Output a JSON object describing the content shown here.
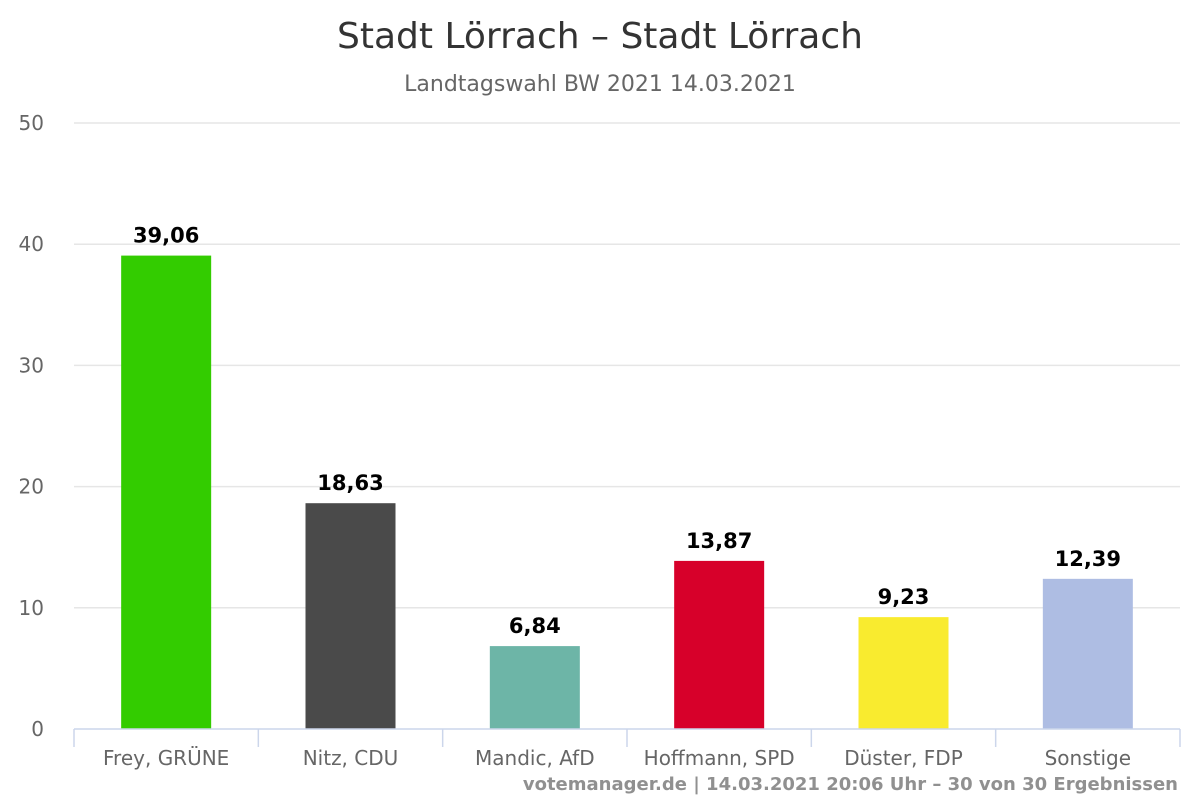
{
  "chart_data": {
    "type": "bar",
    "title": "Stadt Lörrach – Stadt Lörrach",
    "subtitle": "Landtagswahl BW 2021 14.03.2021",
    "xlabel": "",
    "ylabel": "",
    "ylim": [
      0,
      50
    ],
    "yticks": [
      0,
      10,
      20,
      30,
      40,
      50
    ],
    "grid": true,
    "categories": [
      "Frey, GRÜNE",
      "Nitz, CDU",
      "Mandic, AfD",
      "Hoffmann, SPD",
      "Düster, FDP",
      "Sonstige"
    ],
    "values": [
      39.06,
      18.63,
      6.84,
      13.87,
      9.23,
      12.39
    ],
    "data_labels": [
      "39,06",
      "18,63",
      "6,84",
      "13,87",
      "9,23",
      "12,39"
    ],
    "colors": [
      "#33cc00",
      "#4a4a4a",
      "#6db5a7",
      "#d7002a",
      "#f9eb2f",
      "#aebde3"
    ]
  },
  "credits": "votemanager.de | 14.03.2021 20:06 Uhr – 30 von 30 Ergebnissen"
}
